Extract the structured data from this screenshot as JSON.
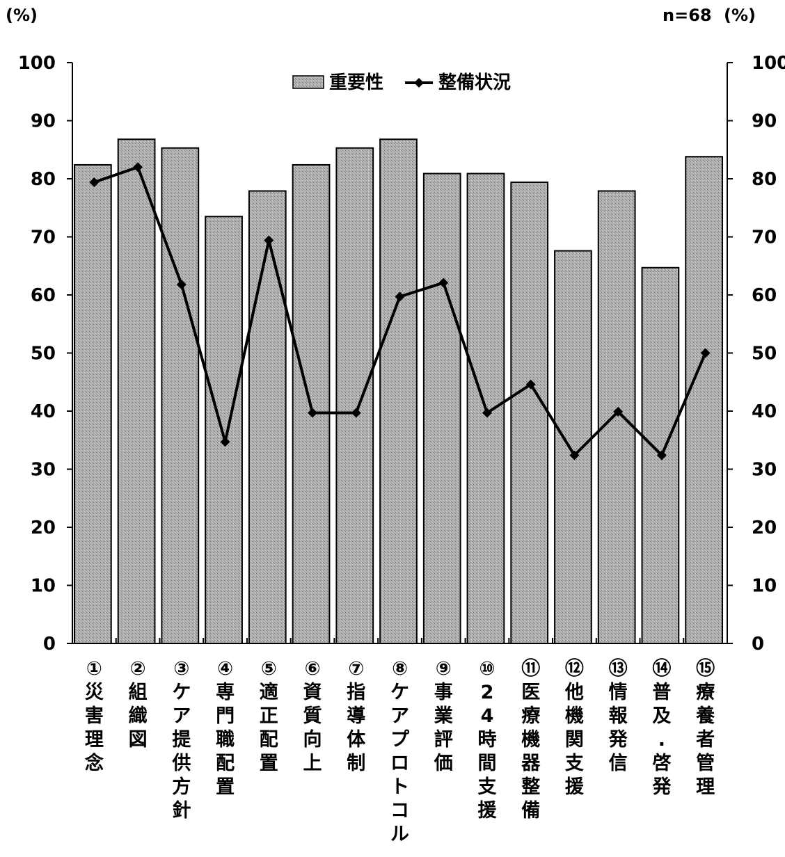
{
  "chart_data": {
    "type": "bar",
    "categories": [
      "①災害理念",
      "②組織図",
      "③ケア提供方針",
      "④専門職配置",
      "⑤適正配置",
      "⑥資質向上",
      "⑦指導体制",
      "⑧ケアプロトコル",
      "⑨事業評価",
      "⑩24時間支援",
      "⑪医療機器整備",
      "⑫他機関支援",
      "⑬情報発信",
      "⑭普及.啓発",
      "⑮療養者管理"
    ],
    "category_lines": [
      [
        "①",
        "災",
        "害",
        "理",
        "念"
      ],
      [
        "②",
        "組",
        "織",
        "図"
      ],
      [
        "③",
        "ケ",
        "ア",
        "提",
        "供",
        "方",
        "針"
      ],
      [
        "④",
        "専",
        "門",
        "職",
        "配",
        "置"
      ],
      [
        "⑤",
        "適",
        "正",
        "配",
        "置"
      ],
      [
        "⑥",
        "資",
        "質",
        "向",
        "上"
      ],
      [
        "⑦",
        "指",
        "導",
        "体",
        "制"
      ],
      [
        "⑧",
        "ケ",
        "ア",
        "プ",
        "ロ",
        "ト",
        "コ",
        "ル"
      ],
      [
        "⑨",
        "事",
        "業",
        "評",
        "価"
      ],
      [
        "⑩",
        "2",
        "4",
        "時",
        "間",
        "支",
        "援"
      ],
      [
        "⑪",
        "医",
        "療",
        "機",
        "器",
        "整",
        "備"
      ],
      [
        "⑫",
        "他",
        "機",
        "関",
        "支",
        "援"
      ],
      [
        "⑬",
        "情",
        "報",
        "発",
        "信"
      ],
      [
        "⑭",
        "普",
        "及",
        ".",
        "啓",
        "発"
      ],
      [
        "⑮",
        "療",
        "養",
        "者",
        "管",
        "理"
      ]
    ],
    "series": [
      {
        "name": "重要性",
        "type": "bar",
        "values": [
          82.4,
          86.8,
          85.3,
          73.5,
          77.9,
          82.4,
          85.3,
          86.8,
          80.9,
          80.9,
          79.4,
          67.6,
          77.9,
          64.7,
          83.8
        ]
      },
      {
        "name": "整備状況",
        "type": "line",
        "values": [
          79.4,
          82.0,
          61.8,
          34.7,
          69.4,
          39.7,
          39.7,
          59.7,
          62.1,
          39.7,
          44.6,
          32.4,
          39.9,
          32.4,
          50.0
        ]
      }
    ],
    "ylim": [
      0,
      100
    ],
    "yticks": [
      "0",
      "10",
      "20",
      "30",
      "40",
      "50",
      "60",
      "70",
      "80",
      "90",
      "100"
    ],
    "y2ticks": [
      "0",
      "10",
      "20",
      "30",
      "40",
      "50",
      "60",
      "70",
      "80",
      "90",
      "100"
    ],
    "y_unit_left": "(%)",
    "y_unit_right": "(%)",
    "sample_note": "n=68",
    "legend_position": "top-center",
    "grid": false,
    "colors": {
      "bar_fill": "#a9a9a9",
      "bar_stroke": "#000000",
      "line": "#000000"
    }
  }
}
